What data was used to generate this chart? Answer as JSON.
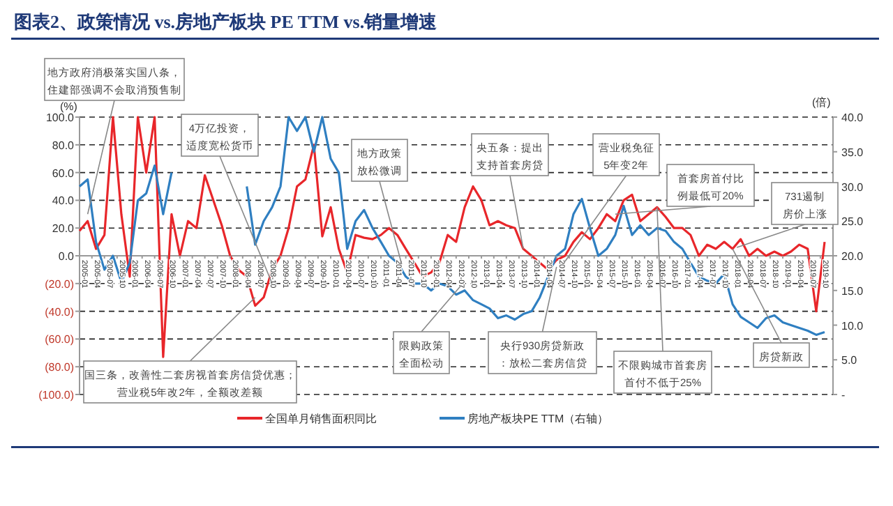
{
  "chart_data": {
    "type": "line",
    "title": "图表2、政策情况 vs.房地产板块 PE TTM vs.销量增速",
    "ylabel": "(%)",
    "y2label": "(倍)",
    "x": [
      "2005-01",
      "2005-03",
      "2005-05",
      "2005-07",
      "2005-09",
      "2005-11",
      "2006-01",
      "2006-03",
      "2006-05",
      "2006-07",
      "2006-09",
      "2006-11",
      "2007-01",
      "2007-03",
      "2007-05",
      "2007-07",
      "2007-09",
      "2007-11",
      "2008-01",
      "2008-03",
      "2008-05",
      "2008-07",
      "2008-09",
      "2008-11",
      "2009-01",
      "2009-03",
      "2009-05",
      "2009-07",
      "2009-09",
      "2009-11",
      "2010-01",
      "2010-03",
      "2010-05",
      "2010-07",
      "2010-09",
      "2010-11",
      "2011-01",
      "2011-03",
      "2011-05",
      "2011-07",
      "2011-09",
      "2011-11",
      "2012-01",
      "2012-03",
      "2012-05",
      "2012-07",
      "2012-09",
      "2012-11",
      "2013-01",
      "2013-03",
      "2013-05",
      "2013-07",
      "2013-09",
      "2013-11",
      "2014-01",
      "2014-03",
      "2014-05",
      "2014-07",
      "2014-09",
      "2014-11",
      "2015-01",
      "2015-03",
      "2015-05",
      "2015-07",
      "2015-09",
      "2015-11",
      "2016-01",
      "2016-03",
      "2016-05",
      "2016-07",
      "2016-09",
      "2016-11",
      "2017-01",
      "2017-03",
      "2017-05",
      "2017-07",
      "2017-09",
      "2017-11",
      "2018-01",
      "2018-03",
      "2018-05",
      "2018-07",
      "2018-09",
      "2018-11",
      "2019-01",
      "2019-03",
      "2019-05",
      "2019-07",
      "2019-09",
      "2019-11"
    ],
    "series": [
      {
        "name": "全国单月销售面积同比",
        "color": "#e8262a",
        "values": [
          18,
          25,
          5,
          15,
          100,
          30,
          -15,
          100,
          60,
          100,
          -73,
          30,
          0,
          25,
          20,
          58,
          40,
          22,
          0,
          -10,
          -15,
          -36,
          -30,
          -10,
          0,
          20,
          50,
          55,
          80,
          14,
          35,
          5,
          -12,
          15,
          13,
          12,
          15,
          20,
          15,
          5,
          -5,
          -15,
          -12,
          -5,
          15,
          10,
          35,
          50,
          40,
          22,
          25,
          22,
          20,
          5,
          0,
          -5,
          -10,
          -3,
          0,
          10,
          17,
          12,
          20,
          30,
          25,
          40,
          44,
          25,
          30,
          35,
          28,
          20,
          20,
          15,
          0,
          8,
          5,
          10,
          5,
          12,
          0,
          5,
          0,
          3,
          0,
          3,
          8,
          5,
          -40,
          10
        ]
      },
      {
        "name": "房地产板块PE TTM（右轴）",
        "color": "#2f7fc1",
        "axis": "y2",
        "values": [
          30,
          31,
          22,
          18,
          20,
          16.2,
          19,
          28,
          29,
          33,
          26,
          32,
          null,
          null,
          null,
          null,
          null,
          null,
          null,
          null,
          30,
          21.6,
          25,
          27,
          30,
          40,
          38,
          40,
          35,
          40,
          34,
          32,
          21,
          25,
          26.6,
          24,
          22,
          20,
          19,
          17,
          16,
          16,
          15,
          16,
          15.6,
          14.4,
          15,
          13.6,
          13,
          12.4,
          11,
          11.4,
          10.8,
          11.6,
          12,
          14,
          17,
          20,
          21,
          26,
          28.2,
          24,
          20,
          21,
          23,
          27.2,
          23,
          24.4,
          23,
          24,
          23.6,
          22,
          21,
          19,
          17,
          16.4,
          16,
          17.4,
          13,
          11.2,
          10.4,
          9.6,
          11,
          11.4,
          10.4,
          10,
          9.6,
          9.2,
          8.6,
          9
        ]
      }
    ],
    "xlim": [
      "2005-01",
      "2020-01"
    ],
    "xticks": [
      "2005-01",
      "2005-04",
      "2005-07",
      "2005-10",
      "2006-01",
      "2006-04",
      "2006-07",
      "2006-10",
      "2007-01",
      "2007-04",
      "2007-07",
      "2007-10",
      "2008-01",
      "2008-04",
      "2008-07",
      "2008-10",
      "2009-01",
      "2009-04",
      "2009-07",
      "2009-10",
      "2010-01",
      "2010-04",
      "2010-07",
      "2010-10",
      "2011-01",
      "2011-04",
      "2011-07",
      "2011-10",
      "2012-01",
      "2012-04",
      "2012-07",
      "2012-10",
      "2013-01",
      "2013-04",
      "2013-07",
      "2013-10",
      "2014-01",
      "2014-04",
      "2014-07",
      "2014-10",
      "2015-01",
      "2015-04",
      "2015-07",
      "2015-10",
      "2016-01",
      "2016-04",
      "2016-07",
      "2016-10",
      "2017-01",
      "2017-04",
      "2017-07",
      "2017-10",
      "2018-01",
      "2018-04",
      "2018-07",
      "2018-10",
      "2019-01",
      "2019-04",
      "2019-07",
      "2019-10"
    ],
    "ylim": [
      -100,
      100
    ],
    "yticks": [
      {
        "value": 100,
        "label": "100.0"
      },
      {
        "value": 80,
        "label": "80.0"
      },
      {
        "value": 60,
        "label": "60.0"
      },
      {
        "value": 40,
        "label": "40.0"
      },
      {
        "value": 20,
        "label": "20.0"
      },
      {
        "value": 0,
        "label": "0.0"
      },
      {
        "value": -20,
        "label": "(20.0)"
      },
      {
        "value": -40,
        "label": "(40.0)"
      },
      {
        "value": -60,
        "label": "(60.0)"
      },
      {
        "value": -80,
        "label": "(80.0)"
      },
      {
        "value": -100,
        "label": "(100.0)"
      }
    ],
    "y2lim": [
      0,
      40
    ],
    "y2ticks": [
      {
        "value": 40,
        "label": "40.0"
      },
      {
        "value": 35,
        "label": "35.0"
      },
      {
        "value": 30,
        "label": "30.0"
      },
      {
        "value": 25,
        "label": "25.0"
      },
      {
        "value": 20,
        "label": "20.0"
      },
      {
        "value": 15,
        "label": "15.0"
      },
      {
        "value": 10,
        "label": "10.0"
      },
      {
        "value": 5,
        "label": "5.0"
      },
      {
        "value": 0,
        "label": "-"
      }
    ],
    "grid": "y",
    "legend": "bottom",
    "marker": "none",
    "line_style": "solid",
    "annotations": [
      {
        "text": "地方政府消极落实国八条，住建部强调不会取消预售制",
        "x": "2005-03",
        "y": 30
      },
      {
        "text": "4万亿投资，适度宽松货币",
        "x": "2008-11",
        "y": -20
      },
      {
        "text": "地方政策放松微调",
        "x": "2011-06",
        "y": -6
      },
      {
        "text": "央五条：提出支持首套房贷",
        "x": "2013-11",
        "y": 5
      },
      {
        "text": "营业税免征5年变2年",
        "x": "2014-09",
        "y": -4
      },
      {
        "text": "首套房首付比例最低可20%",
        "x": "2015-09",
        "y": 30
      },
      {
        "text": "731遏制房价上涨",
        "x": "2018-02",
        "y": 6
      },
      {
        "text": "国三条，改善性二套房视首套房信贷优惠；营业税5年改2年，全额改差额",
        "x": "2008-07",
        "y": -30
      },
      {
        "text": "限购政策全面松动",
        "x": "2012-08",
        "y": -22
      },
      {
        "text": "央行930房贷新政：放松二套房信贷",
        "x": "2014-07",
        "y": -8
      },
      {
        "text": "不限购城市首套房首付不低于25%",
        "x": "2016-07",
        "y": 35
      },
      {
        "text": "房贷新政",
        "x": "2018-01",
        "y": 5
      }
    ]
  }
}
